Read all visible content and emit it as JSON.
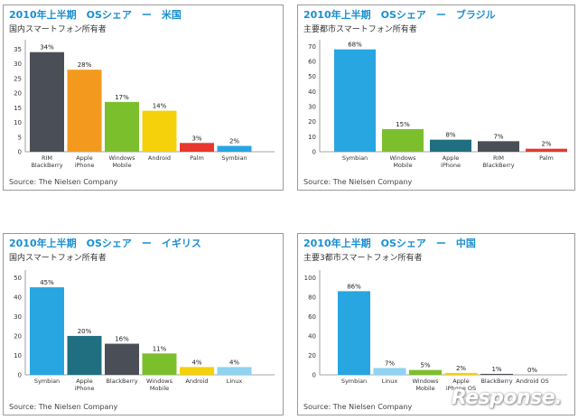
{
  "chart_data": [
    {
      "type": "bar",
      "title": "2010年上半期　OSシェア　ー　米国",
      "subtitle": "国内スマートフォン所有者",
      "source": "Source: The Nielsen Company",
      "categories": [
        [
          "RIM",
          "BlackBerry"
        ],
        [
          "Apple",
          "iPhone"
        ],
        [
          "Windows",
          "Mobile"
        ],
        [
          "Android"
        ],
        [
          "Palm"
        ],
        [
          "Symbian"
        ]
      ],
      "values": [
        34,
        28,
        17,
        14,
        3,
        2
      ],
      "value_labels": [
        "34%",
        "28%",
        "17%",
        "14%",
        "3%",
        "2%"
      ],
      "colors": [
        "#4a4f57",
        "#f39a1e",
        "#7cbf2d",
        "#f4d10b",
        "#e8382d",
        "#27a6e1"
      ],
      "yticks": [
        "0",
        "5",
        "10",
        "15",
        "20",
        "25",
        "30",
        "35"
      ],
      "ylim": [
        0,
        37
      ],
      "grid": false,
      "legend": "none"
    },
    {
      "type": "bar",
      "title": "2010年上半期　OSシェア　ー　ブラジル",
      "subtitle": "主要都市スマートフォン所有者",
      "source": "Source: The Nielsen Company",
      "categories": [
        [
          "Symbian"
        ],
        [
          "Windows",
          "Mobile"
        ],
        [
          "Apple",
          "iPhone"
        ],
        [
          "RIM",
          "BlackBerry"
        ],
        [
          "Palm"
        ]
      ],
      "values": [
        68,
        15,
        8,
        7,
        2
      ],
      "value_labels": [
        "68%",
        "15%",
        "8%",
        "7%",
        "2%"
      ],
      "colors": [
        "#27a6e1",
        "#7cbf2d",
        "#1f6f80",
        "#4a4f57",
        "#e8382d"
      ],
      "yticks": [
        "0",
        "10",
        "20",
        "30",
        "40",
        "50",
        "60",
        "70"
      ],
      "ylim": [
        0,
        72
      ],
      "grid": false,
      "legend": "none"
    },
    {
      "type": "bar",
      "title": "2010年上半期　OSシェア　ー　イギリス",
      "subtitle": "国内スマートフォン所有者",
      "source": "Source: The Nielsen Company",
      "categories": [
        [
          "Symbian"
        ],
        [
          "Apple",
          "iPhone"
        ],
        [
          "BlackBerry"
        ],
        [
          "Windows",
          "Mobile"
        ],
        [
          "Android"
        ],
        [
          "Linux"
        ]
      ],
      "values": [
        45,
        20,
        16,
        11,
        4,
        4
      ],
      "value_labels": [
        "45%",
        "20%",
        "16%",
        "11%",
        "4%",
        "4%"
      ],
      "colors": [
        "#27a6e1",
        "#1f6f80",
        "#4a4f57",
        "#7cbf2d",
        "#f4d10b",
        "#8fd3f0"
      ],
      "yticks": [
        "0",
        "10",
        "20",
        "30",
        "40",
        "50"
      ],
      "ylim": [
        0,
        52
      ],
      "grid": false,
      "legend": "none"
    },
    {
      "type": "bar",
      "title": "2010年上半期　OSシェア　ー　中国",
      "subtitle": "主要3都市スマートフォン所有者",
      "source": "Source: The Nielsen Company",
      "categories": [
        [
          "Symbian"
        ],
        [
          "Linux"
        ],
        [
          "Windows",
          "Mobile"
        ],
        [
          "Apple",
          "iPhone OS"
        ],
        [
          "BlackBerry"
        ],
        [
          "Android OS"
        ]
      ],
      "values": [
        86,
        7,
        5,
        2,
        1,
        0
      ],
      "value_labels": [
        "86%",
        "7%",
        "5%",
        "2%",
        "1%",
        "0%"
      ],
      "colors": [
        "#27a6e1",
        "#8fd3f0",
        "#7cbf2d",
        "#f4d10b",
        "#4a4f57",
        "#999999"
      ],
      "yticks": [
        "0",
        "20",
        "40",
        "60",
        "80",
        "100"
      ],
      "ylim": [
        0,
        104
      ],
      "grid": false,
      "legend": "none"
    }
  ],
  "watermark": "Response."
}
